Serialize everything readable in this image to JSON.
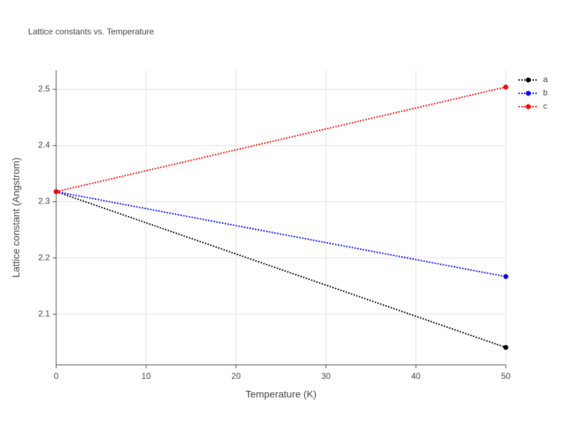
{
  "chart_data": {
    "type": "line",
    "title": "Lattice constants vs. Temperature",
    "x_label": "Temperature (K)",
    "y_label": "Lattice constant (Angstrom)",
    "x": [
      0,
      50
    ],
    "series": [
      {
        "name": "a",
        "color": "#000000",
        "values": [
          2.318,
          2.041
        ]
      },
      {
        "name": "b",
        "color": "#0000ff",
        "values": [
          2.318,
          2.167
        ]
      },
      {
        "name": "c",
        "color": "#ff0000",
        "values": [
          2.318,
          2.504
        ]
      }
    ],
    "xlim": [
      0,
      50
    ],
    "xticks": [
      0,
      10,
      20,
      30,
      40,
      50
    ],
    "ylim": [
      2.01,
      2.534
    ],
    "yticks": [
      2.1,
      2.2,
      2.3,
      2.4,
      2.5
    ],
    "grid": true,
    "legend": "outside-right"
  }
}
